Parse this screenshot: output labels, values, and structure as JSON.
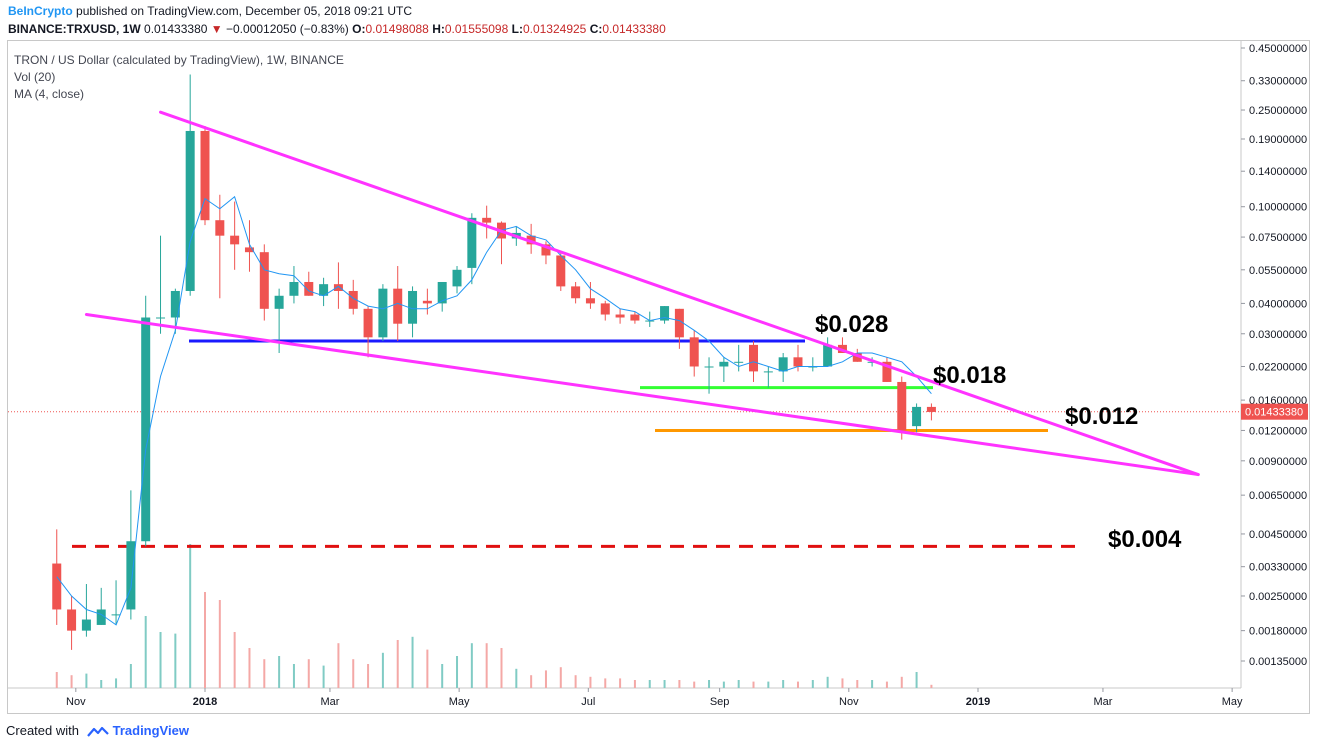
{
  "header": {
    "brand": "BeInCrypto",
    "published": "published on TradingView.com, December 05, 2018 09:21 UTC",
    "symbol": "BINANCE:TRXUSD, 1W",
    "last": "0.01433380",
    "change_arrow": "▼",
    "change": "−0.00012050 (−0.83%)",
    "o_label": "O:",
    "o_value": "0.01498088",
    "h_label": "H:",
    "h_value": "0.01555098",
    "l_label": "L:",
    "l_value": "0.01324925",
    "c_label": "C:",
    "c_value": "0.01433380"
  },
  "legend": {
    "title": "TRON / US Dollar (calculated by TradingView), 1W, BINANCE",
    "vol": "Vol (20)",
    "ma": "MA (4, close)"
  },
  "footer": {
    "created_with": "Created with",
    "brand": "TradingView"
  },
  "colors": {
    "up": "#26a69a",
    "down": "#ef5350",
    "ma": "#2196f3",
    "wedge": "#ff33ff",
    "level_blue": "#1a1aff",
    "level_green": "#33ff33",
    "level_orange": "#ff9800",
    "level_red": "#e01010",
    "last_price": "#ef5350"
  },
  "chart_data": {
    "type": "candlestick",
    "scale": "log",
    "x_axis_labels": [
      "Nov",
      "2018",
      "Mar",
      "May",
      "Jul",
      "Sep",
      "Nov",
      "2019",
      "Mar",
      "May"
    ],
    "y_axis_labels": [
      "0.45000000",
      "0.33000000",
      "0.25000000",
      "0.19000000",
      "0.14000000",
      "0.10000000",
      "0.07500000",
      "0.05500000",
      "0.04000000",
      "0.03000000",
      "0.02200000",
      "0.01600000",
      "0.01200000",
      "0.00900000",
      "0.00650000",
      "0.00450000",
      "0.00330000",
      "0.00250000",
      "0.00180000",
      "0.00135000"
    ],
    "y_axis_values": [
      0.45,
      0.33,
      0.25,
      0.19,
      0.14,
      0.1,
      0.075,
      0.055,
      0.04,
      0.03,
      0.022,
      0.016,
      0.012,
      0.009,
      0.0065,
      0.0045,
      0.0033,
      0.0025,
      0.0018,
      0.00135
    ],
    "last_price_label": "0.01433380",
    "last_price": 0.0143338,
    "candles": [
      {
        "date": "2017-10-23",
        "o": 0.0034,
        "h": 0.0047,
        "l": 0.0019,
        "c": 0.0022
      },
      {
        "date": "2017-10-30",
        "o": 0.0022,
        "h": 0.0025,
        "l": 0.0015,
        "c": 0.0018
      },
      {
        "date": "2017-11-06",
        "o": 0.0018,
        "h": 0.0028,
        "l": 0.0017,
        "c": 0.002
      },
      {
        "date": "2017-11-13",
        "o": 0.0019,
        "h": 0.0027,
        "l": 0.0019,
        "c": 0.0022
      },
      {
        "date": "2017-11-20",
        "o": 0.0021,
        "h": 0.0029,
        "l": 0.0019,
        "c": 0.0021
      },
      {
        "date": "2017-11-27",
        "o": 0.0022,
        "h": 0.0068,
        "l": 0.002,
        "c": 0.0042
      },
      {
        "date": "2017-12-04",
        "o": 0.0042,
        "h": 0.043,
        "l": 0.004,
        "c": 0.035
      },
      {
        "date": "2017-12-11",
        "o": 0.035,
        "h": 0.076,
        "l": 0.03,
        "c": 0.035
      },
      {
        "date": "2017-12-18",
        "o": 0.035,
        "h": 0.046,
        "l": 0.03,
        "c": 0.045
      },
      {
        "date": "2017-12-25",
        "o": 0.045,
        "h": 0.35,
        "l": 0.043,
        "c": 0.205
      },
      {
        "date": "2018-01-01",
        "o": 0.205,
        "h": 0.215,
        "l": 0.084,
        "c": 0.088
      },
      {
        "date": "2018-01-08",
        "o": 0.088,
        "h": 0.112,
        "l": 0.042,
        "c": 0.076
      },
      {
        "date": "2018-01-15",
        "o": 0.076,
        "h": 0.105,
        "l": 0.055,
        "c": 0.07
      },
      {
        "date": "2018-01-22",
        "o": 0.068,
        "h": 0.088,
        "l": 0.054,
        "c": 0.065
      },
      {
        "date": "2018-01-29",
        "o": 0.065,
        "h": 0.07,
        "l": 0.034,
        "c": 0.038
      },
      {
        "date": "2018-02-05",
        "o": 0.038,
        "h": 0.046,
        "l": 0.025,
        "c": 0.043
      },
      {
        "date": "2018-02-12",
        "o": 0.043,
        "h": 0.057,
        "l": 0.04,
        "c": 0.049
      },
      {
        "date": "2018-02-19",
        "o": 0.049,
        "h": 0.054,
        "l": 0.043,
        "c": 0.043
      },
      {
        "date": "2018-02-26",
        "o": 0.043,
        "h": 0.051,
        "l": 0.039,
        "c": 0.048
      },
      {
        "date": "2018-03-05",
        "o": 0.048,
        "h": 0.059,
        "l": 0.038,
        "c": 0.045
      },
      {
        "date": "2018-03-12",
        "o": 0.045,
        "h": 0.05,
        "l": 0.036,
        "c": 0.038
      },
      {
        "date": "2018-03-19",
        "o": 0.038,
        "h": 0.039,
        "l": 0.024,
        "c": 0.029
      },
      {
        "date": "2018-03-26",
        "o": 0.029,
        "h": 0.048,
        "l": 0.028,
        "c": 0.046
      },
      {
        "date": "2018-04-02",
        "o": 0.046,
        "h": 0.057,
        "l": 0.028,
        "c": 0.033
      },
      {
        "date": "2018-04-09",
        "o": 0.033,
        "h": 0.047,
        "l": 0.029,
        "c": 0.045
      },
      {
        "date": "2018-04-16",
        "o": 0.041,
        "h": 0.046,
        "l": 0.036,
        "c": 0.04
      },
      {
        "date": "2018-04-23",
        "o": 0.04,
        "h": 0.049,
        "l": 0.037,
        "c": 0.049
      },
      {
        "date": "2018-04-30",
        "o": 0.047,
        "h": 0.057,
        "l": 0.044,
        "c": 0.055
      },
      {
        "date": "2018-05-07",
        "o": 0.056,
        "h": 0.094,
        "l": 0.048,
        "c": 0.09
      },
      {
        "date": "2018-05-14",
        "o": 0.09,
        "h": 0.101,
        "l": 0.074,
        "c": 0.086
      },
      {
        "date": "2018-05-21",
        "o": 0.086,
        "h": 0.087,
        "l": 0.058,
        "c": 0.074
      },
      {
        "date": "2018-05-28",
        "o": 0.074,
        "h": 0.083,
        "l": 0.069,
        "c": 0.078
      },
      {
        "date": "2018-06-04",
        "o": 0.076,
        "h": 0.085,
        "l": 0.064,
        "c": 0.07
      },
      {
        "date": "2018-06-11",
        "o": 0.07,
        "h": 0.072,
        "l": 0.058,
        "c": 0.063
      },
      {
        "date": "2018-06-18",
        "o": 0.063,
        "h": 0.065,
        "l": 0.045,
        "c": 0.047
      },
      {
        "date": "2018-06-25",
        "o": 0.047,
        "h": 0.049,
        "l": 0.04,
        "c": 0.042
      },
      {
        "date": "2018-07-02",
        "o": 0.042,
        "h": 0.049,
        "l": 0.038,
        "c": 0.04
      },
      {
        "date": "2018-07-09",
        "o": 0.04,
        "h": 0.041,
        "l": 0.034,
        "c": 0.036
      },
      {
        "date": "2018-07-16",
        "o": 0.036,
        "h": 0.038,
        "l": 0.033,
        "c": 0.035
      },
      {
        "date": "2018-07-23",
        "o": 0.036,
        "h": 0.037,
        "l": 0.033,
        "c": 0.034
      },
      {
        "date": "2018-07-30",
        "o": 0.034,
        "h": 0.037,
        "l": 0.032,
        "c": 0.034
      },
      {
        "date": "2018-08-06",
        "o": 0.034,
        "h": 0.039,
        "l": 0.033,
        "c": 0.039
      },
      {
        "date": "2018-08-13",
        "o": 0.038,
        "h": 0.038,
        "l": 0.026,
        "c": 0.029
      },
      {
        "date": "2018-08-20",
        "o": 0.029,
        "h": 0.031,
        "l": 0.02,
        "c": 0.022
      },
      {
        "date": "2018-08-27",
        "o": 0.022,
        "h": 0.024,
        "l": 0.017,
        "c": 0.022
      },
      {
        "date": "2018-09-03",
        "o": 0.022,
        "h": 0.024,
        "l": 0.019,
        "c": 0.023
      },
      {
        "date": "2018-09-10",
        "o": 0.023,
        "h": 0.027,
        "l": 0.021,
        "c": 0.023
      },
      {
        "date": "2018-09-17",
        "o": 0.027,
        "h": 0.028,
        "l": 0.019,
        "c": 0.021
      },
      {
        "date": "2018-09-24",
        "o": 0.021,
        "h": 0.022,
        "l": 0.018,
        "c": 0.021
      },
      {
        "date": "2018-10-01",
        "o": 0.021,
        "h": 0.025,
        "l": 0.019,
        "c": 0.024
      },
      {
        "date": "2018-10-08",
        "o": 0.024,
        "h": 0.027,
        "l": 0.021,
        "c": 0.022
      },
      {
        "date": "2018-10-15",
        "o": 0.022,
        "h": 0.024,
        "l": 0.021,
        "c": 0.022
      },
      {
        "date": "2018-10-22",
        "o": 0.022,
        "h": 0.029,
        "l": 0.022,
        "c": 0.027
      },
      {
        "date": "2018-10-29",
        "o": 0.027,
        "h": 0.029,
        "l": 0.025,
        "c": 0.025
      },
      {
        "date": "2018-11-05",
        "o": 0.025,
        "h": 0.026,
        "l": 0.023,
        "c": 0.023
      },
      {
        "date": "2018-11-12",
        "o": 0.023,
        "h": 0.024,
        "l": 0.022,
        "c": 0.023
      },
      {
        "date": "2018-11-19",
        "o": 0.023,
        "h": 0.024,
        "l": 0.019,
        "c": 0.019
      },
      {
        "date": "2018-11-26",
        "o": 0.019,
        "h": 0.02,
        "l": 0.011,
        "c": 0.012
      },
      {
        "date": "2018-12-03",
        "o": 0.0125,
        "h": 0.0155,
        "l": 0.0118,
        "c": 0.015
      },
      {
        "date": "2018-12-10",
        "o": 0.015,
        "h": 0.0155,
        "l": 0.0132,
        "c": 0.0143
      }
    ],
    "ma": [
      0.003,
      0.0025,
      0.0022,
      0.0021,
      0.0019,
      0.0027,
      0.01,
      0.02,
      0.031,
      0.072,
      0.108,
      0.098,
      0.11,
      0.07,
      0.055,
      0.053,
      0.052,
      0.045,
      0.043,
      0.047,
      0.042,
      0.039,
      0.038,
      0.04,
      0.038,
      0.038,
      0.041,
      0.043,
      0.05,
      0.065,
      0.08,
      0.083,
      0.076,
      0.073,
      0.063,
      0.055,
      0.046,
      0.042,
      0.038,
      0.037,
      0.034,
      0.035,
      0.034,
      0.031,
      0.028,
      0.024,
      0.022,
      0.023,
      0.022,
      0.021,
      0.022,
      0.022,
      0.022,
      0.023,
      0.025,
      0.025,
      0.024,
      0.023,
      0.02,
      0.017
    ],
    "volume": [
      0.1,
      0.08,
      0.09,
      0.05,
      0.06,
      0.15,
      0.45,
      0.35,
      0.34,
      0.9,
      0.6,
      0.55,
      0.35,
      0.25,
      0.18,
      0.2,
      0.15,
      0.18,
      0.14,
      0.28,
      0.18,
      0.15,
      0.22,
      0.3,
      0.32,
      0.24,
      0.15,
      0.2,
      0.28,
      0.28,
      0.25,
      0.12,
      0.08,
      0.11,
      0.13,
      0.08,
      0.07,
      0.06,
      0.06,
      0.05,
      0.05,
      0.05,
      0.05,
      0.04,
      0.05,
      0.04,
      0.05,
      0.04,
      0.04,
      0.05,
      0.04,
      0.05,
      0.07,
      0.06,
      0.05,
      0.05,
      0.04,
      0.07,
      0.1,
      0.02
    ],
    "levels": [
      {
        "label": "$0.028",
        "price": 0.028,
        "color": "#1a1aff",
        "style": "solid"
      },
      {
        "label": "$0.018",
        "price": 0.018,
        "color": "#33ff33",
        "style": "solid"
      },
      {
        "label": "$0.012",
        "price": 0.012,
        "color": "#ff9800",
        "style": "solid"
      },
      {
        "label": "$0.004",
        "price": 0.004,
        "color": "#e01010",
        "style": "dashed"
      }
    ],
    "trendlines": [
      {
        "from": {
          "date": "2017-12-11",
          "price": 0.245
        },
        "to": {
          "date": "2019-04-15",
          "price": 0.0079
        },
        "color": "#ff33ff"
      },
      {
        "from": {
          "date": "2017-11-06",
          "price": 0.036
        },
        "to": {
          "date": "2019-04-15",
          "price": 0.0079
        },
        "color": "#ff33ff"
      }
    ]
  }
}
